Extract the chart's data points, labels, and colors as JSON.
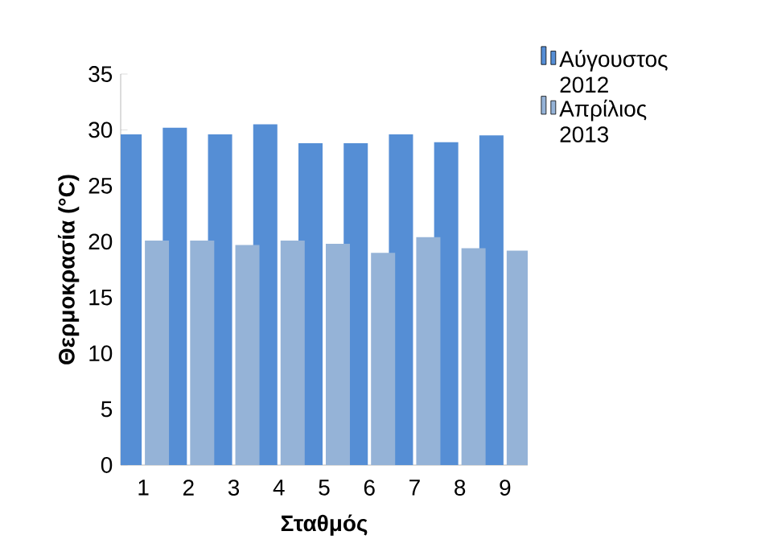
{
  "chart_data": {
    "type": "bar",
    "xlabel": "Σταθμός",
    "ylabel": "Θερμοκρασία (°C)",
    "categories": [
      "1",
      "2",
      "3",
      "4",
      "5",
      "6",
      "7",
      "8",
      "9"
    ],
    "series": [
      {
        "name": "Αύγουστος 2012",
        "color": "#558ed5",
        "values": [
          29.6,
          30.2,
          29.6,
          30.5,
          28.8,
          28.8,
          29.6,
          28.9,
          29.5
        ]
      },
      {
        "name": "Απρίλιος 2013",
        "color": "#95b3d7",
        "values": [
          20.1,
          20.1,
          19.7,
          20.1,
          19.8,
          19.0,
          20.4,
          19.4,
          19.2
        ]
      }
    ],
    "ylim": [
      0,
      35
    ],
    "yticks": [
      0,
      5,
      10,
      15,
      20,
      25,
      30,
      35
    ],
    "legend": "right",
    "grid": false
  }
}
